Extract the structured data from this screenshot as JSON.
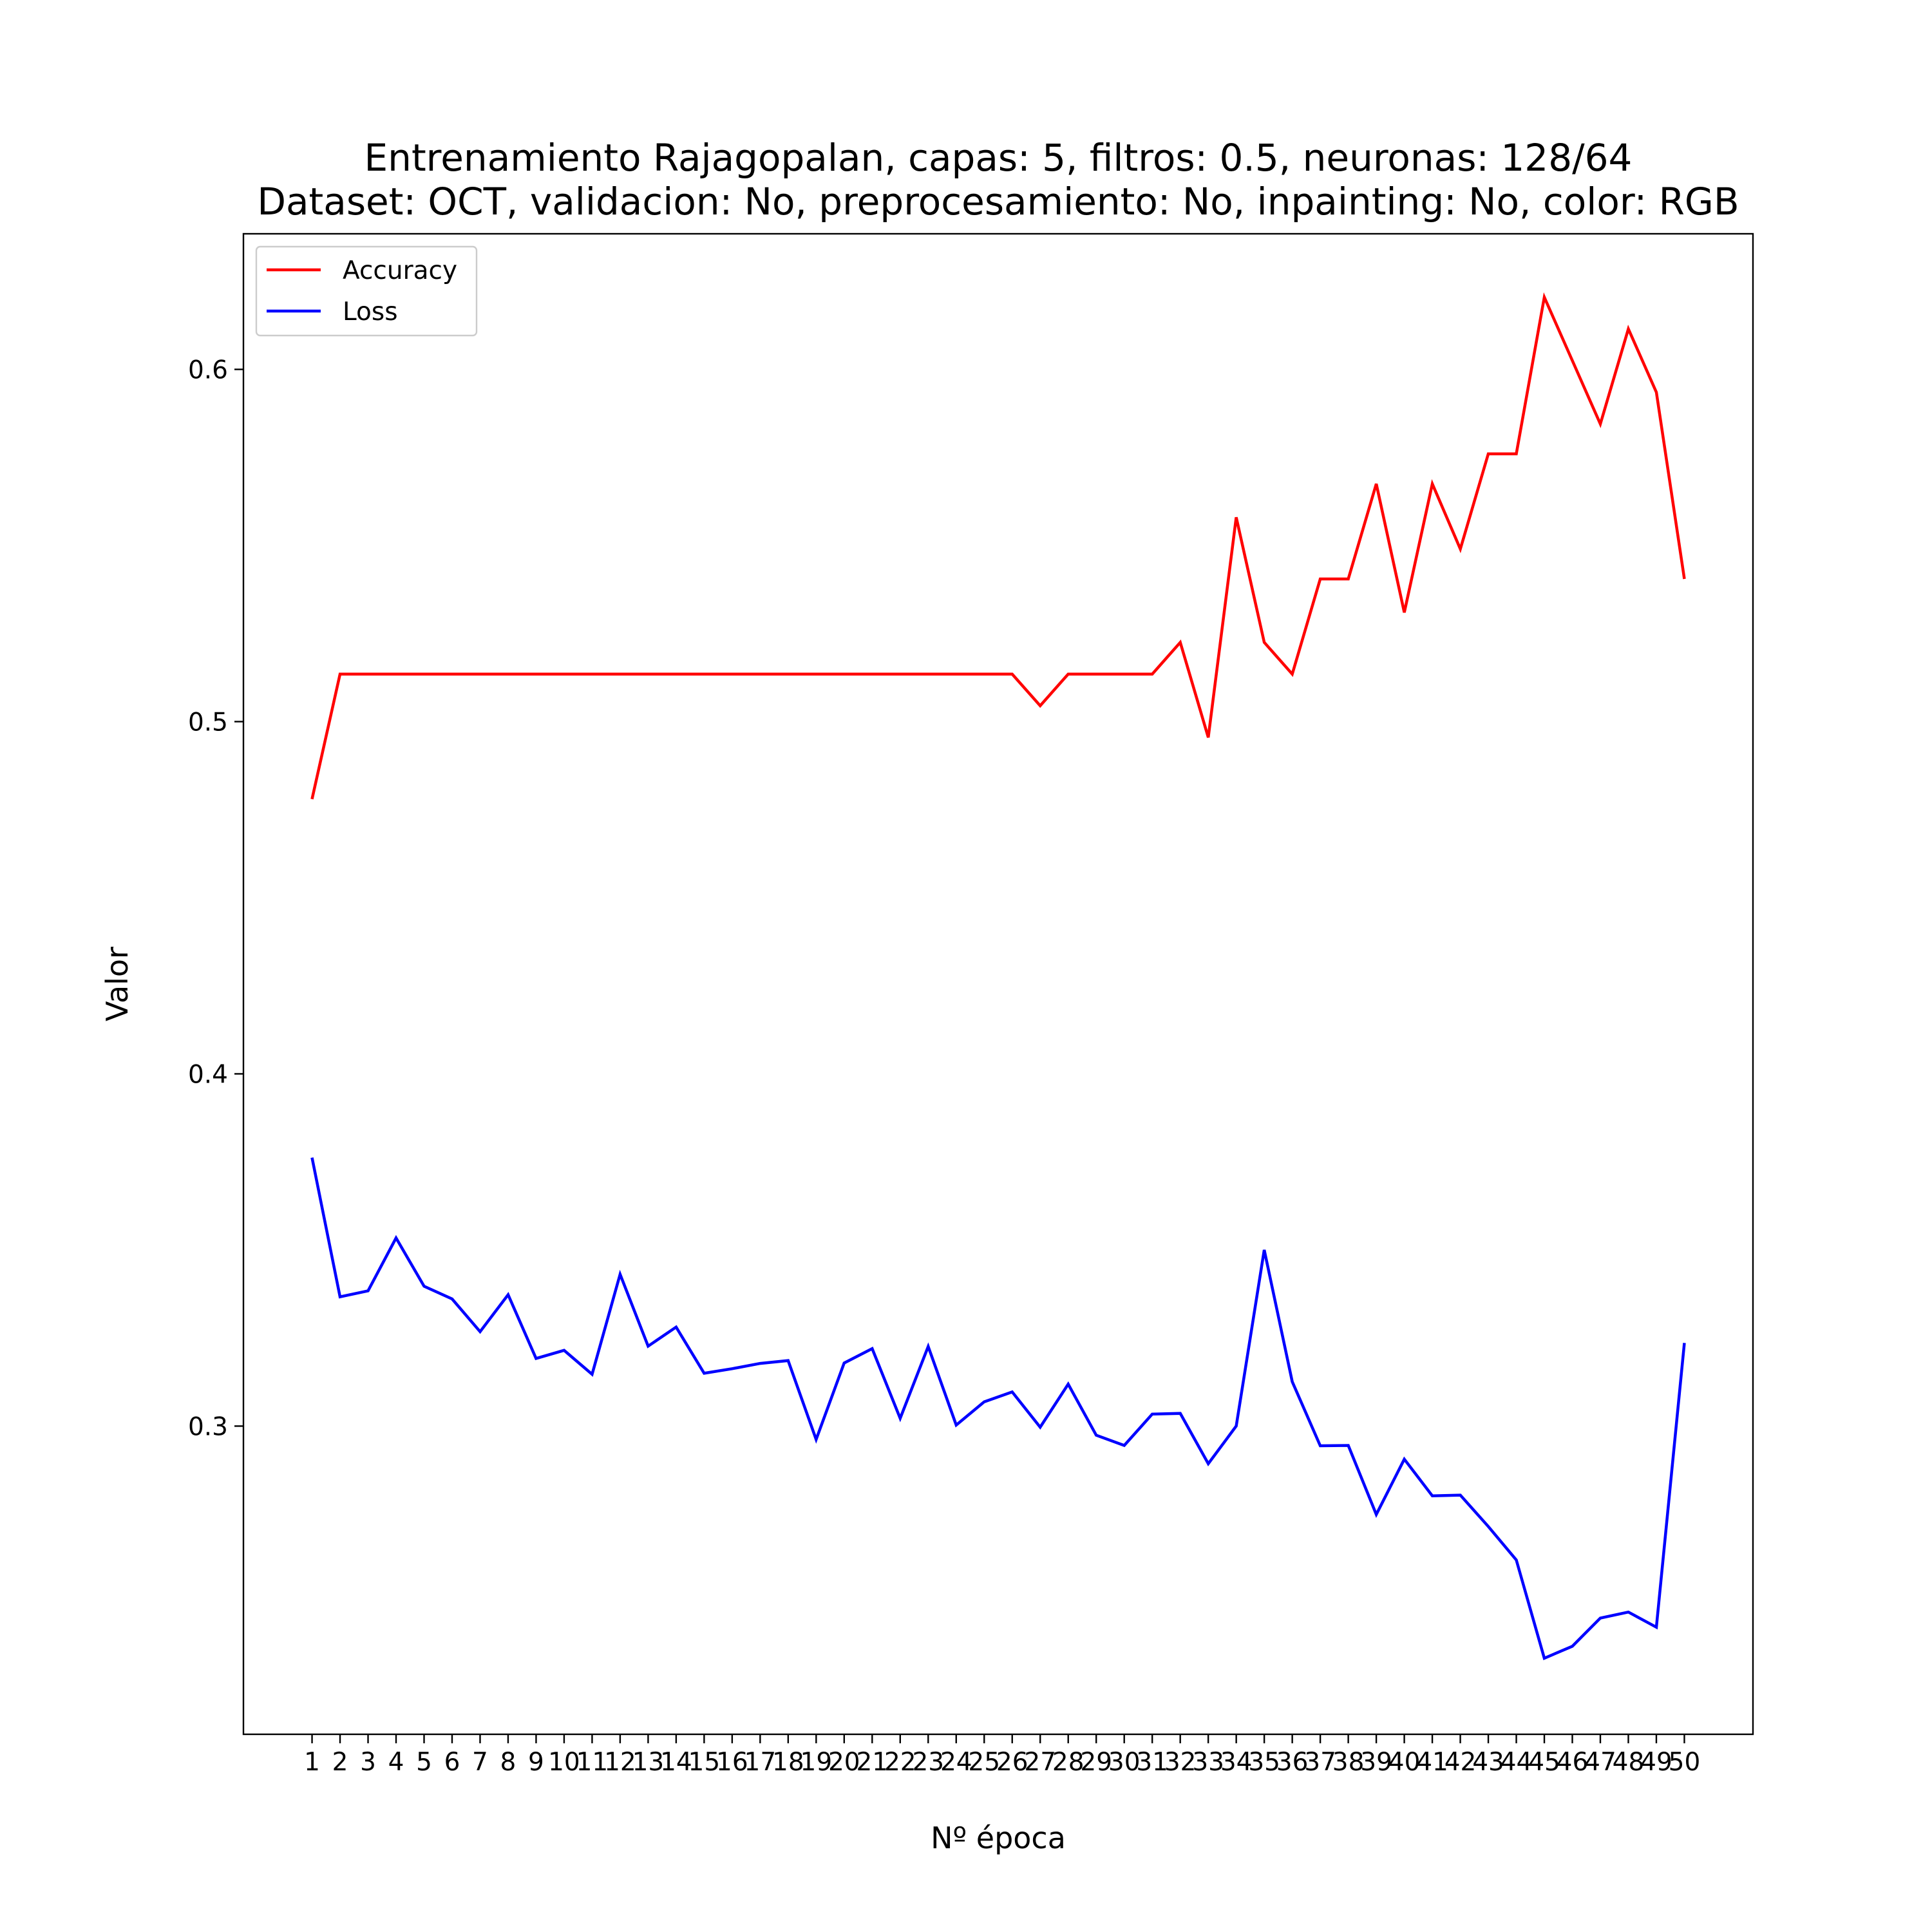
{
  "chart_data": {
    "type": "line",
    "title_lines": [
      "Entrenamiento Rajagopalan, capas: 5, filtros: 0.5, neuronas: 128/64",
      "Dataset: OCT, validacion: No, preprocesamiento: No, inpainting: No, color: RGB"
    ],
    "xlabel": "Nº época",
    "ylabel": "Valor",
    "x": [
      1,
      2,
      3,
      4,
      5,
      6,
      7,
      8,
      9,
      10,
      11,
      12,
      13,
      14,
      15,
      16,
      17,
      18,
      19,
      20,
      21,
      22,
      23,
      24,
      25,
      26,
      27,
      28,
      29,
      30,
      31,
      32,
      33,
      34,
      35,
      36,
      37,
      38,
      39,
      40,
      41,
      42,
      43,
      44,
      45,
      46,
      47,
      48,
      49,
      50
    ],
    "x_tick_labels": [
      "1",
      "2",
      "3",
      "4",
      "5",
      "6",
      "7",
      "8",
      "9",
      "10",
      "11",
      "12",
      "13",
      "14",
      "15",
      "16",
      "17",
      "18",
      "19",
      "20",
      "21",
      "22",
      "23",
      "24",
      "25",
      "26",
      "27",
      "28",
      "29",
      "30",
      "31",
      "32",
      "33",
      "34",
      "35",
      "36",
      "37",
      "38",
      "39",
      "40",
      "41",
      "42",
      "43",
      "44",
      "45",
      "46",
      "47",
      "48",
      "49",
      "50"
    ],
    "y_ticks": [
      0.3,
      0.4,
      0.5,
      0.6
    ],
    "y_tick_labels": [
      "0.3",
      "0.4",
      "0.5",
      "0.6"
    ],
    "xlim": [
      -1.45,
      52.45
    ],
    "ylim": [
      0.2125,
      0.6385
    ],
    "grid": false,
    "legend_position": "upper-left",
    "series": [
      {
        "name": "Accuracy",
        "color": "#ff0000",
        "values": [
          0.478,
          0.5135,
          0.5135,
          0.5135,
          0.5135,
          0.5135,
          0.5135,
          0.5135,
          0.5135,
          0.5135,
          0.5135,
          0.5135,
          0.5135,
          0.5135,
          0.5135,
          0.5135,
          0.5135,
          0.5135,
          0.5135,
          0.5135,
          0.5135,
          0.5135,
          0.5135,
          0.5135,
          0.5135,
          0.5135,
          0.5045,
          0.5135,
          0.5135,
          0.5135,
          0.5135,
          0.5225,
          0.4955,
          0.558,
          0.5225,
          0.5135,
          0.5405,
          0.5405,
          0.5675,
          0.531,
          0.5675,
          0.549,
          0.576,
          0.576,
          0.6205,
          0.6025,
          0.5845,
          0.6115,
          0.5935,
          0.5405
        ]
      },
      {
        "name": "Loss",
        "color": "#0000ff",
        "values": [
          0.3762,
          0.3367,
          0.3384,
          0.3534,
          0.3397,
          0.3361,
          0.3268,
          0.3373,
          0.3192,
          0.3215,
          0.3147,
          0.3431,
          0.3227,
          0.3281,
          0.315,
          0.3163,
          0.3178,
          0.3186,
          0.2962,
          0.3179,
          0.322,
          0.3022,
          0.3226,
          0.3003,
          0.3069,
          0.3097,
          0.2997,
          0.3119,
          0.2974,
          0.2945,
          0.3034,
          0.3036,
          0.2893,
          0.3,
          0.35,
          0.3126,
          0.2944,
          0.2945,
          0.2749,
          0.2906,
          0.2802,
          0.2804,
          0.2715,
          0.262,
          0.2341,
          0.2375,
          0.2455,
          0.2472,
          0.2429,
          0.3236
        ]
      }
    ]
  }
}
